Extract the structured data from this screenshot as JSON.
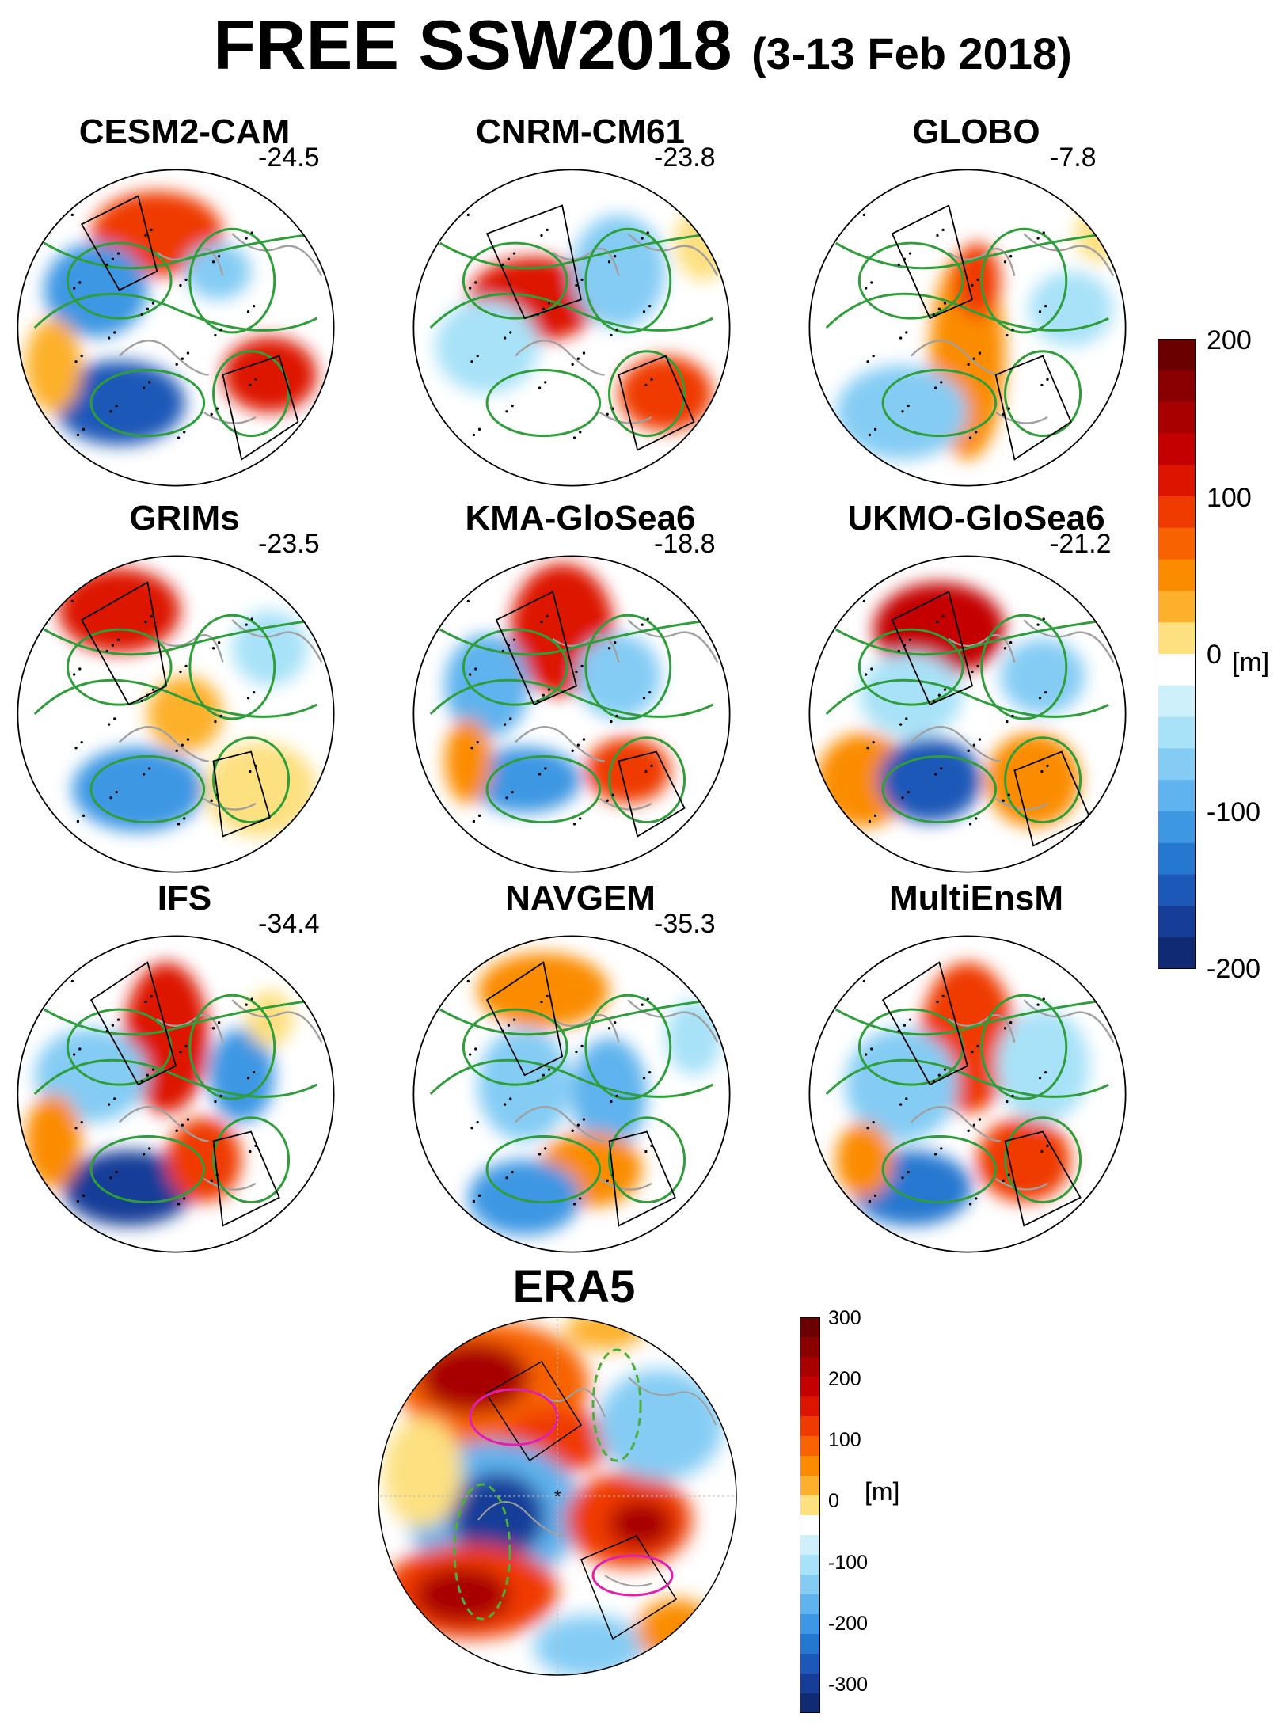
{
  "figure": {
    "title_main": "FREE SSW2018",
    "title_period": "(3-13 Feb 2018)"
  },
  "panels": [
    {
      "name": "CESM2-CAM",
      "value": "-24.5"
    },
    {
      "name": "CNRM-CM61",
      "value": "-23.8"
    },
    {
      "name": "GLOBO",
      "value": "-7.8"
    },
    {
      "name": "GRIMs",
      "value": "-23.5"
    },
    {
      "name": "KMA-GloSea6",
      "value": "-18.8"
    },
    {
      "name": "UKMO-GloSea6",
      "value": "-21.2"
    },
    {
      "name": "IFS",
      "value": "-34.4"
    },
    {
      "name": "NAVGEM",
      "value": "-35.3"
    },
    {
      "name": "MultiEnsM",
      "value": ""
    }
  ],
  "era5": {
    "name": "ERA5"
  },
  "colorbar_models": {
    "ticks": [
      "200",
      "100",
      "0",
      "-100",
      "-200"
    ],
    "unit": "[m]",
    "range": [
      -200,
      200
    ],
    "colors_high_to_low": [
      "#6b0000",
      "#8a0000",
      "#a80000",
      "#c40000",
      "#dd1400",
      "#ef3a00",
      "#f86200",
      "#fb8c00",
      "#fdb02c",
      "#fde080",
      "#ffffff",
      "#cdf0fb",
      "#a8e2f8",
      "#84ccf4",
      "#5fb3ee",
      "#3d97e3",
      "#2578d0",
      "#1c58b8",
      "#163e98",
      "#102a74"
    ]
  },
  "colorbar_era5": {
    "ticks": [
      "300",
      "200",
      "100",
      "0",
      "-100",
      "-200",
      "-300"
    ],
    "unit": "[m]",
    "range": [
      -300,
      300
    ]
  }
}
